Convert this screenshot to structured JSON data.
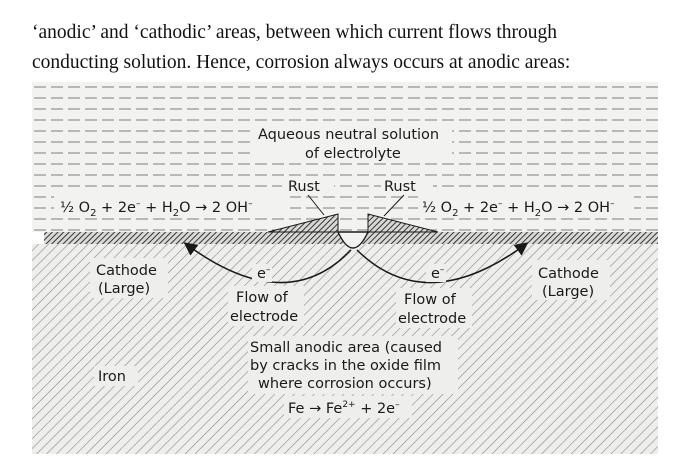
{
  "intro": {
    "line1": "‘anodic’ and ‘cathodic’ areas, between which current flows through",
    "line2": "conducting solution. Hence, corrosion always occurs at anodic areas:"
  },
  "diagram": {
    "solution_line1": "Aqueous neutral solution",
    "solution_line2": "of electrolyte",
    "rust_left": "Rust",
    "rust_right": "Rust",
    "equation_left": {
      "a": "½ O",
      "a_sub": "2",
      "b": " + 2e",
      "b_sup": "–",
      "c": " + H",
      "c_sub": "2",
      "d": "O → 2 OH",
      "d_sup": "–"
    },
    "equation_right": {
      "a": "½ O",
      "a_sub": "2",
      "b": " + 2e",
      "b_sup": "–",
      "c": " + H",
      "c_sub": "2",
      "d": "O → 2 OH",
      "d_sup": "–"
    },
    "cathode_left_line1": "Cathode",
    "cathode_left_line2": "(Large)",
    "cathode_right_line1": "Cathode",
    "cathode_right_line2": "(Large)",
    "electron_left": "e",
    "electron_left_sup": "–",
    "electron_right": "e",
    "electron_right_sup": "–",
    "flow_left_line1": "Flow of",
    "flow_left_line2": "electrode",
    "flow_right_line1": "Flow of",
    "flow_right_line2": "electrode",
    "anode_line1": "Small anodic area (caused",
    "anode_line2": "by cracks in the oxide film",
    "anode_line3": "where corrosion occurs)",
    "anode_equation": {
      "a": "Fe → Fe",
      "a_sup": "2+",
      "b": " + 2e",
      "b_sup": "–"
    },
    "metal_label": "Iron"
  }
}
